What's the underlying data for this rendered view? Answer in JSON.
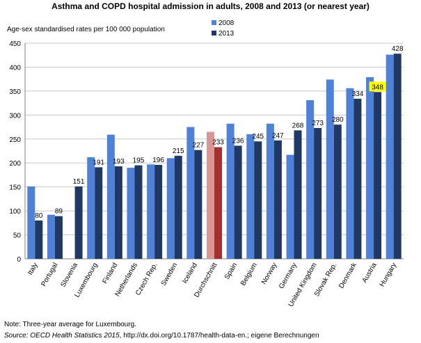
{
  "chart_data": {
    "type": "bar",
    "title": "Asthma and COPD hospital admission in adults, 2008 and 2013 (or nearest year)",
    "ylabel": "Age-sex standardised rates per 100 000 population",
    "ylim": [
      0,
      450
    ],
    "yticks": [
      0,
      50,
      100,
      150,
      200,
      250,
      300,
      350,
      400,
      450
    ],
    "grid": true,
    "legend_position": "top",
    "categories": [
      "Italy",
      "Portugal",
      "Slovenia",
      "Luxembourg",
      "Finland",
      "Netherlands",
      "Czech Rep.",
      "Sweden",
      "Iceland",
      "Durchschnitt",
      "Spain",
      "Belgium",
      "Norway",
      "Germany",
      "United Kingdom",
      "Slovak Rep.",
      "Denmark",
      "Austria",
      "Hungary"
    ],
    "series": [
      {
        "name": "2008",
        "color": "#4f81d8",
        "highlight_color": "#d99694",
        "values": [
          151,
          92,
          null,
          212,
          259,
          190,
          197,
          210,
          275,
          265,
          282,
          260,
          282,
          217,
          331,
          374,
          356,
          379,
          426
        ]
      },
      {
        "name": "2013",
        "color": "#1f3864",
        "highlight_color": "#a3302e",
        "values": [
          80,
          89,
          151,
          191,
          193,
          195,
          196,
          215,
          227,
          233,
          236,
          245,
          247,
          268,
          273,
          280,
          334,
          348,
          428
        ]
      }
    ],
    "data_labels": [
      "80",
      "89",
      "151",
      "191",
      "193",
      "195",
      "196",
      "215",
      "227",
      "233",
      "236",
      "245",
      "247",
      "268",
      "273",
      "280",
      "334",
      "348",
      "428"
    ],
    "highlight_category": "Durchschnitt",
    "highlight_label_category": "Austria",
    "label_highlight_color": "#ffff00"
  },
  "footer": {
    "note": "Note: Three-year average for Luxembourg.",
    "source_prefix": "Source: OECD Health Statistics 2015",
    "source_rest": ", http://dx.doi.org/10.1787/health-data-en.; eigene Berechnungen"
  }
}
